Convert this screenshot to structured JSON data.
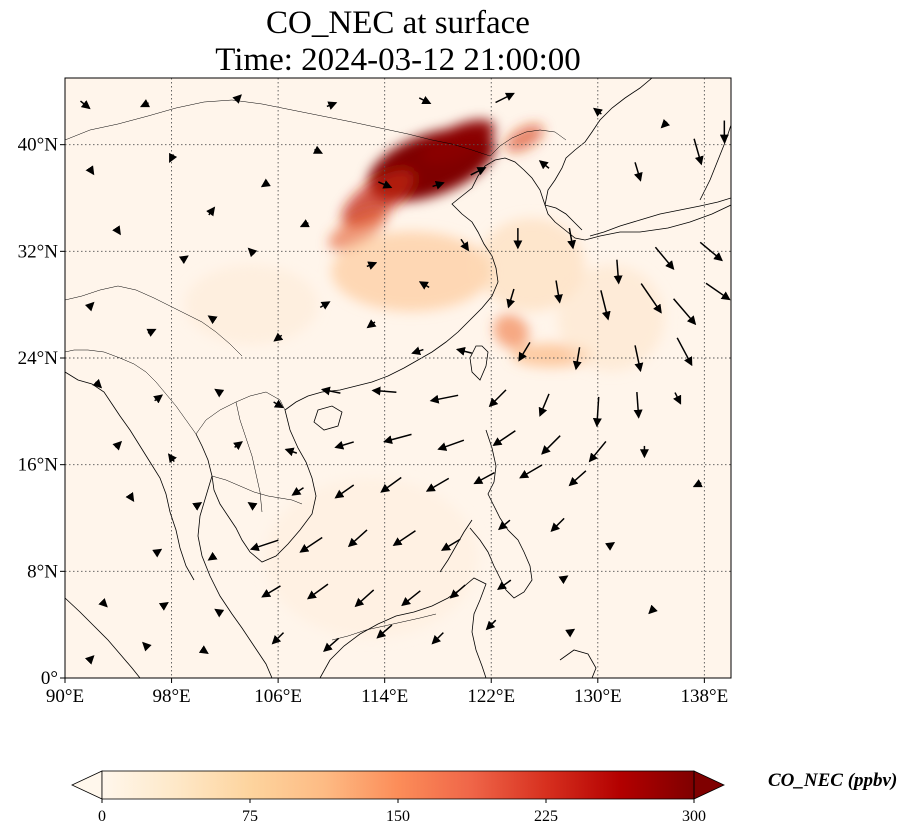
{
  "title": {
    "line1": "CO_NEC at surface",
    "line2": "Time: 2024-03-12 21:00:00"
  },
  "map": {
    "projection": "PlateCarree",
    "lon_range": [
      90,
      140
    ],
    "lat_range": [
      0,
      45
    ],
    "x_ticks": [
      {
        "value": 90,
        "label": "90°E"
      },
      {
        "value": 98,
        "label": "98°E"
      },
      {
        "value": 106,
        "label": "106°E"
      },
      {
        "value": 114,
        "label": "114°E"
      },
      {
        "value": 122,
        "label": "122°E"
      },
      {
        "value": 130,
        "label": "130°E"
      },
      {
        "value": 138,
        "label": "138°E"
      }
    ],
    "y_ticks": [
      {
        "value": 0,
        "label": "0°"
      },
      {
        "value": 8,
        "label": "8°N"
      },
      {
        "value": 16,
        "label": "16°N"
      },
      {
        "value": 24,
        "label": "24°N"
      },
      {
        "value": 32,
        "label": "32°N"
      },
      {
        "value": 40,
        "label": "40°N"
      }
    ],
    "gridlines": "dotted",
    "background_color": "#fff5eb",
    "plumes": [
      {
        "lon": 117.5,
        "lat": 38.5,
        "rlon": 5.0,
        "rlat": 2.3,
        "rot": -20,
        "color": "#7f0000",
        "opacity": 1.0
      },
      {
        "lon": 119.5,
        "lat": 40.2,
        "rlon": 3.0,
        "rlat": 1.2,
        "rot": -25,
        "color": "#8b0000",
        "opacity": 0.95
      },
      {
        "lon": 113.5,
        "lat": 36.0,
        "rlon": 3.2,
        "rlat": 1.3,
        "rot": -35,
        "color": "#c2240e",
        "opacity": 0.75
      },
      {
        "lon": 112.0,
        "lat": 33.6,
        "rlon": 2.5,
        "rlat": 1.0,
        "rot": -30,
        "color": "#e45a2b",
        "opacity": 0.6
      },
      {
        "lon": 116.0,
        "lat": 30.5,
        "rlon": 6.0,
        "rlat": 3.0,
        "rot": 0,
        "color": "#fdbf86",
        "opacity": 0.55
      },
      {
        "lon": 123.5,
        "lat": 26.0,
        "rlon": 1.4,
        "rlat": 1.2,
        "rot": 40,
        "color": "#f0743d",
        "opacity": 0.6
      },
      {
        "lon": 126.5,
        "lat": 24.2,
        "rlon": 3.0,
        "rlat": 0.9,
        "rot": 0,
        "color": "#fca867",
        "opacity": 0.55
      },
      {
        "lon": 124.5,
        "lat": 40.5,
        "rlon": 1.6,
        "rlat": 0.8,
        "rot": -30,
        "color": "#d73a17",
        "opacity": 0.6
      },
      {
        "lon": 125.0,
        "lat": 31.0,
        "rlon": 4.0,
        "rlat": 3.5,
        "rot": 0,
        "color": "#fdd9b3",
        "opacity": 0.55
      },
      {
        "lon": 104.0,
        "lat": 28.0,
        "rlon": 5.0,
        "rlat": 3.0,
        "rot": 0,
        "color": "#feebd7",
        "opacity": 0.6
      },
      {
        "lon": 131.0,
        "lat": 27.0,
        "rlon": 4.0,
        "rlat": 4.0,
        "rot": 0,
        "color": "#fee3c8",
        "opacity": 0.55
      },
      {
        "lon": 113.0,
        "lat": 9.0,
        "rlon": 8.0,
        "rlat": 6.0,
        "rot": 0,
        "color": "#ffeedd",
        "opacity": 0.6
      }
    ],
    "wind_vectors": [
      {
        "lon": 91.5,
        "lat": 43.0,
        "u": 0.5,
        "v": -0.4
      },
      {
        "lon": 96.0,
        "lat": 43.0,
        "u": -0.4,
        "v": -0.2
      },
      {
        "lon": 103.0,
        "lat": 43.5,
        "u": 0.3,
        "v": 0.3
      },
      {
        "lon": 110.0,
        "lat": 43.0,
        "u": 0.5,
        "v": 0.2
      },
      {
        "lon": 117.0,
        "lat": 43.3,
        "u": 0.6,
        "v": -0.3
      },
      {
        "lon": 123.0,
        "lat": 43.5,
        "u": 1.0,
        "v": 0.5
      },
      {
        "lon": 130.0,
        "lat": 42.5,
        "u": -0.4,
        "v": 0.3
      },
      {
        "lon": 135.0,
        "lat": 41.5,
        "u": -0.3,
        "v": -0.3
      },
      {
        "lon": 92.0,
        "lat": 38.0,
        "u": 0.2,
        "v": -0.3
      },
      {
        "lon": 98.0,
        "lat": 39.0,
        "u": -0.2,
        "v": -0.4
      },
      {
        "lon": 101.0,
        "lat": 35.0,
        "u": 0.3,
        "v": 0.4
      },
      {
        "lon": 105.0,
        "lat": 37.0,
        "u": -0.3,
        "v": -0.2
      },
      {
        "lon": 109.0,
        "lat": 39.5,
        "u": 0.4,
        "v": -0.2
      },
      {
        "lon": 114.0,
        "lat": 37.0,
        "u": 0.7,
        "v": -0.3
      },
      {
        "lon": 118.0,
        "lat": 37.0,
        "u": 0.6,
        "v": 0.2
      },
      {
        "lon": 121.0,
        "lat": 38.0,
        "u": 0.8,
        "v": 0.4
      },
      {
        "lon": 126.0,
        "lat": 38.5,
        "u": -0.5,
        "v": 0.4
      },
      {
        "lon": 133.0,
        "lat": 38.0,
        "u": 0.3,
        "v": -1.0
      },
      {
        "lon": 137.5,
        "lat": 39.5,
        "u": 0.4,
        "v": -1.4
      },
      {
        "lon": 139.5,
        "lat": 41.0,
        "u": 0.0,
        "v": -1.2
      },
      {
        "lon": 94.0,
        "lat": 33.5,
        "u": 0.2,
        "v": -0.3
      },
      {
        "lon": 99.0,
        "lat": 31.5,
        "u": 0.3,
        "v": 0.2
      },
      {
        "lon": 104.0,
        "lat": 32.0,
        "u": -0.3,
        "v": 0.3
      },
      {
        "lon": 108.0,
        "lat": 34.0,
        "u": -0.4,
        "v": -0.2
      },
      {
        "lon": 113.0,
        "lat": 31.0,
        "u": 0.5,
        "v": 0.2
      },
      {
        "lon": 117.0,
        "lat": 29.5,
        "u": -0.5,
        "v": 0.3
      },
      {
        "lon": 120.0,
        "lat": 32.5,
        "u": 0.4,
        "v": -0.6
      },
      {
        "lon": 124.0,
        "lat": 33.0,
        "u": 0.0,
        "v": -1.1
      },
      {
        "lon": 128.0,
        "lat": 33.0,
        "u": 0.2,
        "v": -1.1
      },
      {
        "lon": 131.5,
        "lat": 30.5,
        "u": 0.1,
        "v": -1.3
      },
      {
        "lon": 135.0,
        "lat": 31.5,
        "u": 1.0,
        "v": -1.2
      },
      {
        "lon": 138.5,
        "lat": 32.0,
        "u": 1.2,
        "v": -1.0
      },
      {
        "lon": 139.0,
        "lat": 29.0,
        "u": 1.3,
        "v": -0.9
      },
      {
        "lon": 136.5,
        "lat": 27.5,
        "u": 1.2,
        "v": -1.4
      },
      {
        "lon": 134.0,
        "lat": 28.5,
        "u": 1.1,
        "v": -1.6
      },
      {
        "lon": 130.5,
        "lat": 28.0,
        "u": 0.4,
        "v": -1.6
      },
      {
        "lon": 127.0,
        "lat": 29.0,
        "u": 0.2,
        "v": -1.2
      },
      {
        "lon": 123.5,
        "lat": 28.5,
        "u": -0.3,
        "v": -1.0
      },
      {
        "lon": 92.0,
        "lat": 28.0,
        "u": 0.2,
        "v": 0.2
      },
      {
        "lon": 96.5,
        "lat": 26.0,
        "u": 0.4,
        "v": 0.2
      },
      {
        "lon": 101.0,
        "lat": 27.0,
        "u": -0.3,
        "v": 0.2
      },
      {
        "lon": 106.0,
        "lat": 25.5,
        "u": -0.4,
        "v": -0.3
      },
      {
        "lon": 109.5,
        "lat": 28.0,
        "u": 0.5,
        "v": 0.3
      },
      {
        "lon": 113.0,
        "lat": 26.5,
        "u": -0.4,
        "v": -0.3
      },
      {
        "lon": 116.5,
        "lat": 24.5,
        "u": -0.6,
        "v": -0.2
      },
      {
        "lon": 120.0,
        "lat": 24.5,
        "u": -0.8,
        "v": 0.2
      },
      {
        "lon": 124.5,
        "lat": 24.5,
        "u": -0.6,
        "v": -1.0
      },
      {
        "lon": 128.5,
        "lat": 24.0,
        "u": -0.2,
        "v": -1.2
      },
      {
        "lon": 133.0,
        "lat": 24.0,
        "u": 0.3,
        "v": -1.4
      },
      {
        "lon": 136.5,
        "lat": 24.5,
        "u": 0.8,
        "v": -1.5
      },
      {
        "lon": 92.5,
        "lat": 22.0,
        "u": 0.3,
        "v": -0.3
      },
      {
        "lon": 97.0,
        "lat": 21.0,
        "u": 0.4,
        "v": 0.3
      },
      {
        "lon": 101.5,
        "lat": 21.5,
        "u": -0.3,
        "v": 0.2
      },
      {
        "lon": 106.0,
        "lat": 20.5,
        "u": 0.5,
        "v": -0.3
      },
      {
        "lon": 110.0,
        "lat": 21.5,
        "u": -1.0,
        "v": 0.2
      },
      {
        "lon": 114.0,
        "lat": 21.5,
        "u": -1.3,
        "v": 0.1
      },
      {
        "lon": 118.5,
        "lat": 21.0,
        "u": -1.5,
        "v": -0.3
      },
      {
        "lon": 122.5,
        "lat": 21.0,
        "u": -0.9,
        "v": -0.9
      },
      {
        "lon": 126.0,
        "lat": 20.5,
        "u": -0.5,
        "v": -1.2
      },
      {
        "lon": 130.0,
        "lat": 20.0,
        "u": -0.1,
        "v": -1.6
      },
      {
        "lon": 133.0,
        "lat": 20.5,
        "u": 0.1,
        "v": -1.4
      },
      {
        "lon": 136.0,
        "lat": 21.0,
        "u": 0.3,
        "v": -0.6
      },
      {
        "lon": 94.0,
        "lat": 17.5,
        "u": 0.3,
        "v": 0.3
      },
      {
        "lon": 98.0,
        "lat": 16.5,
        "u": -0.3,
        "v": 0.4
      },
      {
        "lon": 103.0,
        "lat": 17.5,
        "u": 0.4,
        "v": 0.3
      },
      {
        "lon": 107.0,
        "lat": 17.0,
        "u": -0.6,
        "v": 0.2
      },
      {
        "lon": 111.0,
        "lat": 17.5,
        "u": -1.0,
        "v": -0.3
      },
      {
        "lon": 115.0,
        "lat": 18.0,
        "u": -1.5,
        "v": -0.4
      },
      {
        "lon": 119.0,
        "lat": 17.5,
        "u": -1.4,
        "v": -0.5
      },
      {
        "lon": 123.0,
        "lat": 18.0,
        "u": -1.2,
        "v": -0.8
      },
      {
        "lon": 126.5,
        "lat": 17.5,
        "u": -1.0,
        "v": -1.0
      },
      {
        "lon": 130.0,
        "lat": 17.0,
        "u": -0.9,
        "v": -1.1
      },
      {
        "lon": 133.5,
        "lat": 17.0,
        "u": 0.0,
        "v": -0.6
      },
      {
        "lon": 95.0,
        "lat": 13.5,
        "u": 0.2,
        "v": -0.3
      },
      {
        "lon": 100.0,
        "lat": 13.0,
        "u": 0.3,
        "v": 0.2
      },
      {
        "lon": 104.0,
        "lat": 13.0,
        "u": -0.3,
        "v": 0.2
      },
      {
        "lon": 107.5,
        "lat": 14.0,
        "u": -0.6,
        "v": -0.4
      },
      {
        "lon": 111.0,
        "lat": 14.0,
        "u": -1.0,
        "v": -0.7
      },
      {
        "lon": 114.5,
        "lat": 14.5,
        "u": -1.1,
        "v": -0.8
      },
      {
        "lon": 118.0,
        "lat": 14.5,
        "u": -1.2,
        "v": -0.7
      },
      {
        "lon": 121.5,
        "lat": 15.0,
        "u": -1.1,
        "v": -0.6
      },
      {
        "lon": 125.0,
        "lat": 15.5,
        "u": -1.2,
        "v": -0.7
      },
      {
        "lon": 128.5,
        "lat": 15.0,
        "u": -0.9,
        "v": -0.8
      },
      {
        "lon": 137.5,
        "lat": 14.5,
        "u": -0.4,
        "v": -0.2
      },
      {
        "lon": 97.0,
        "lat": 9.5,
        "u": 0.3,
        "v": 0.2
      },
      {
        "lon": 101.0,
        "lat": 9.0,
        "u": -0.3,
        "v": -0.2
      },
      {
        "lon": 105.0,
        "lat": 10.0,
        "u": -1.5,
        "v": -0.5
      },
      {
        "lon": 108.5,
        "lat": 10.0,
        "u": -1.2,
        "v": -0.8
      },
      {
        "lon": 112.0,
        "lat": 10.5,
        "u": -1.0,
        "v": -0.9
      },
      {
        "lon": 115.5,
        "lat": 10.5,
        "u": -1.2,
        "v": -0.8
      },
      {
        "lon": 119.0,
        "lat": 10.0,
        "u": -1.0,
        "v": -0.6
      },
      {
        "lon": 123.0,
        "lat": 11.5,
        "u": -0.6,
        "v": -0.5
      },
      {
        "lon": 127.0,
        "lat": 11.5,
        "u": -0.7,
        "v": -0.7
      },
      {
        "lon": 131.0,
        "lat": 10.0,
        "u": 0.3,
        "v": 0.2
      },
      {
        "lon": 93.0,
        "lat": 5.5,
        "u": 0.2,
        "v": -0.2
      },
      {
        "lon": 97.5,
        "lat": 5.5,
        "u": 0.3,
        "v": 0.2
      },
      {
        "lon": 101.5,
        "lat": 5.0,
        "u": -0.3,
        "v": 0.2
      },
      {
        "lon": 105.5,
        "lat": 6.5,
        "u": -1.0,
        "v": -0.6
      },
      {
        "lon": 109.0,
        "lat": 6.5,
        "u": -1.1,
        "v": -0.8
      },
      {
        "lon": 112.5,
        "lat": 6.0,
        "u": -1.0,
        "v": -0.9
      },
      {
        "lon": 116.0,
        "lat": 6.0,
        "u": -1.0,
        "v": -0.8
      },
      {
        "lon": 119.5,
        "lat": 6.5,
        "u": -0.8,
        "v": -0.7
      },
      {
        "lon": 123.0,
        "lat": 7.0,
        "u": -0.7,
        "v": -0.5
      },
      {
        "lon": 127.5,
        "lat": 7.5,
        "u": 0.3,
        "v": 0.2
      },
      {
        "lon": 92.0,
        "lat": 1.5,
        "u": 0.2,
        "v": 0.2
      },
      {
        "lon": 96.0,
        "lat": 2.5,
        "u": -0.2,
        "v": 0.2
      },
      {
        "lon": 100.5,
        "lat": 2.0,
        "u": 0.3,
        "v": -0.2
      },
      {
        "lon": 106.0,
        "lat": 3.0,
        "u": -0.6,
        "v": -0.6
      },
      {
        "lon": 110.0,
        "lat": 2.5,
        "u": -0.8,
        "v": -0.7
      },
      {
        "lon": 114.0,
        "lat": 3.5,
        "u": -0.8,
        "v": -0.7
      },
      {
        "lon": 118.0,
        "lat": 3.0,
        "u": -0.6,
        "v": -0.6
      },
      {
        "lon": 122.0,
        "lat": 4.0,
        "u": -0.5,
        "v": -0.5
      },
      {
        "lon": 128.0,
        "lat": 3.5,
        "u": 0.3,
        "v": 0.2
      },
      {
        "lon": 134.0,
        "lat": 5.0,
        "u": -0.2,
        "v": -0.2
      }
    ]
  },
  "colorbar": {
    "label": "CO_NEC (ppbv)",
    "vmin": 0,
    "vmax": 300,
    "extend": "both",
    "colormap": "OrRd",
    "stops": [
      "#fff7ec",
      "#fee8c8",
      "#fdd49e",
      "#fdbb84",
      "#fc8d59",
      "#ef6548",
      "#d7301f",
      "#b30000",
      "#7f0000"
    ],
    "ticks": [
      {
        "value": 0,
        "label": "0"
      },
      {
        "value": 75,
        "label": "75"
      },
      {
        "value": 150,
        "label": "150"
      },
      {
        "value": 225,
        "label": "225"
      },
      {
        "value": 300,
        "label": "300"
      }
    ]
  }
}
